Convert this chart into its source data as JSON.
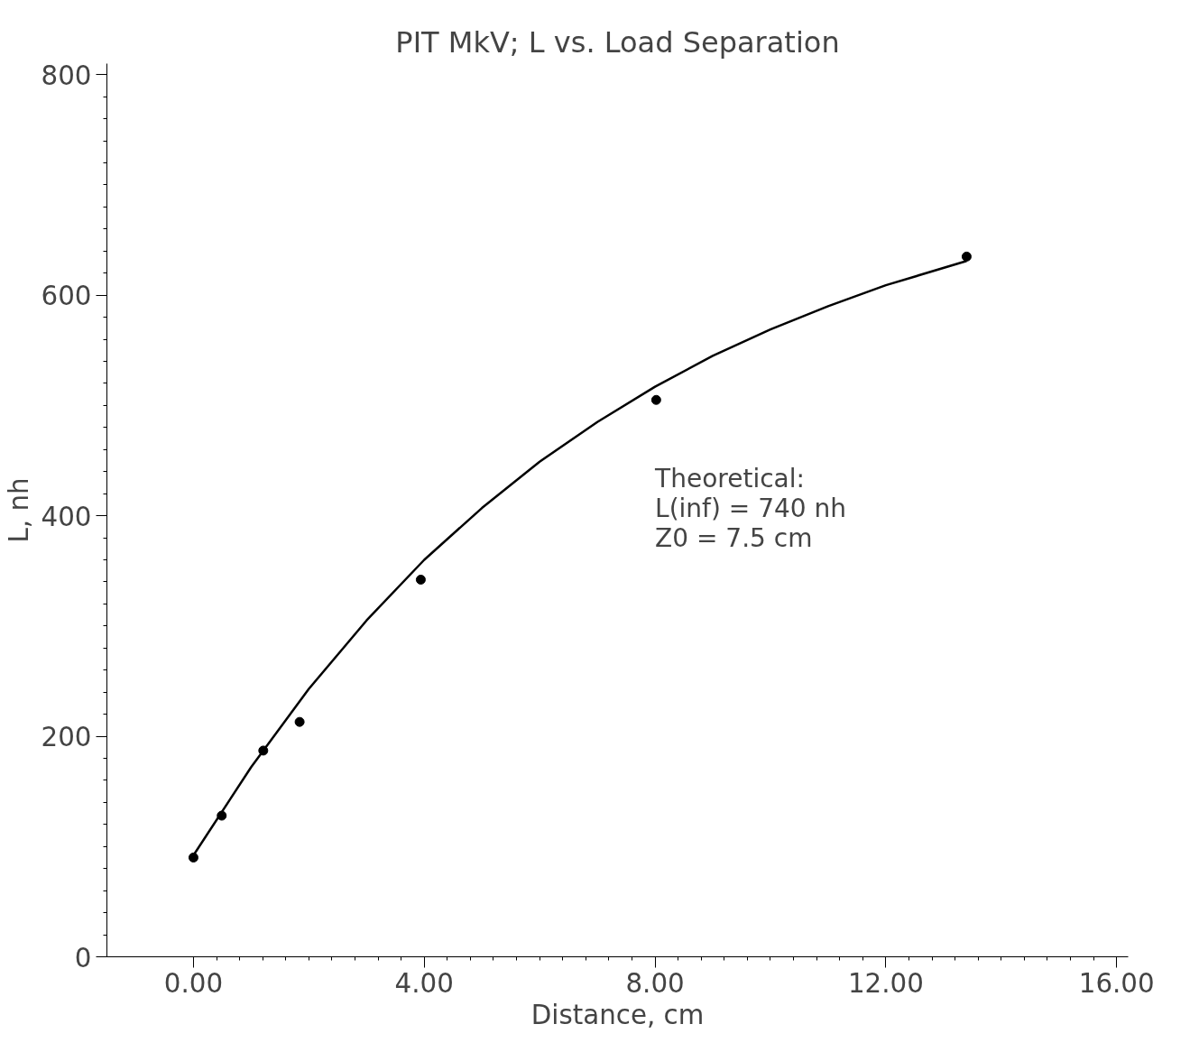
{
  "chart_data": {
    "type": "scatter",
    "title": "PIT MkV; L vs. Load Separation",
    "xlabel": "Distance, cm",
    "ylabel": "L, nh",
    "series": [
      {
        "color": "#000000",
        "marker": "circle",
        "x": [
          0.0,
          0.49,
          1.21,
          1.84,
          3.94,
          8.02,
          13.4
        ],
        "values": [
          90,
          128,
          187,
          213,
          342,
          505,
          635
        ]
      },
      {
        "type": "line",
        "color": "#000000",
        "line_style": "solid",
        "x": [
          0,
          1,
          2,
          3,
          4,
          5,
          6,
          7,
          8,
          9,
          10,
          11,
          12,
          13.4
        ],
        "values": [
          92,
          172,
          243,
          305,
          360,
          407,
          449,
          485,
          517,
          545,
          569,
          590,
          609,
          631
        ]
      }
    ],
    "xlim": [
      -1.5,
      16.2
    ],
    "ylim": [
      0,
      810
    ],
    "xticks": [
      {
        "value": 0,
        "label": "0.00"
      },
      {
        "value": 4,
        "label": "4.00"
      },
      {
        "value": 8,
        "label": "8.00"
      },
      {
        "value": 12,
        "label": "12.00"
      },
      {
        "value": 16,
        "label": "16.00"
      }
    ],
    "yticks": [
      0,
      200,
      400,
      600,
      800
    ],
    "grid": false,
    "annotations": [
      "Theoretical:",
      "L(inf)  =  740  nh",
      "Z0  =  7.5  cm"
    ]
  }
}
